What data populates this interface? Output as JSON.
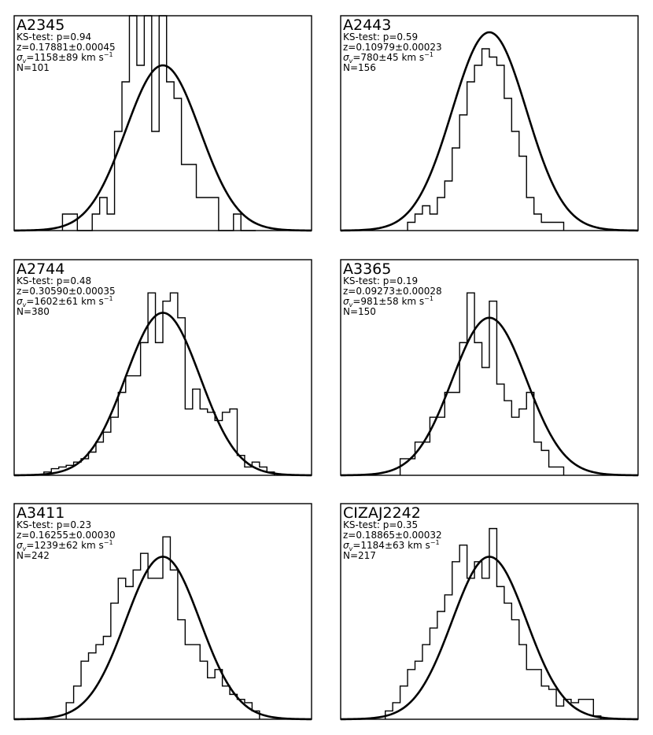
{
  "chart_data": [
    {
      "type": "histogram",
      "title": "A2345",
      "ks_test": "KS-test: p=0.94",
      "redshift": "z=0.17881±0.00045",
      "sigma_v": "=1158±89 km s",
      "n": "N=101",
      "xlim": [
        -4,
        4
      ],
      "ylim": [
        0,
        1.3
      ],
      "bins": [
        -2.7,
        -2.3,
        -1.9,
        -1.7,
        -1.5,
        -1.3,
        -1.1,
        -0.9,
        -0.7,
        -0.5,
        -0.3,
        -0.1,
        0.1,
        0.3,
        0.5,
        0.7,
        0.9,
        1.1,
        1.5,
        1.9,
        2.1,
        2.5
      ],
      "counts": [
        0.1,
        0,
        0.1,
        0.2,
        0.1,
        0.6,
        0.9,
        1.3,
        1.0,
        1.3,
        0.6,
        1.3,
        0.9,
        0.8,
        0.4,
        0.4,
        0.2,
        0.2,
        0,
        0.1,
        0
      ],
      "gauss_peak": 1.0
    },
    {
      "type": "histogram",
      "title": "A2443",
      "ks_test": "KS-test: p=0.59",
      "redshift": "z=0.10979±0.00023",
      "sigma_v": "=780±45 km s",
      "n": "N=156",
      "xlim": [
        -4,
        4
      ],
      "ylim": [
        0,
        1.3
      ],
      "bins": [
        -2.2,
        -2.0,
        -1.8,
        -1.6,
        -1.4,
        -1.2,
        -1.0,
        -0.8,
        -0.6,
        -0.4,
        -0.2,
        0.0,
        0.2,
        0.4,
        0.6,
        0.8,
        1.0,
        1.2,
        1.4,
        1.6,
        1.8,
        2.0
      ],
      "counts": [
        0.05,
        0.1,
        0.15,
        0.1,
        0.2,
        0.3,
        0.5,
        0.7,
        0.9,
        1.0,
        1.1,
        1.05,
        1.0,
        0.8,
        0.6,
        0.45,
        0.2,
        0.1,
        0.05,
        0.05,
        0.05
      ],
      "gauss_peak": 1.2
    },
    {
      "type": "histogram",
      "title": "A2744",
      "ks_test": "KS-test: p=0.48",
      "redshift": "z=0.30590±0.00035",
      "sigma_v": "=1602±61 km s",
      "n": "N=380",
      "xlim": [
        -4,
        4
      ],
      "ylim": [
        0,
        1.3
      ],
      "bins": [
        -3.2,
        -3.0,
        -2.8,
        -2.6,
        -2.4,
        -2.2,
        -2.0,
        -1.8,
        -1.6,
        -1.4,
        -1.2,
        -1.0,
        -0.8,
        -0.6,
        -0.4,
        -0.2,
        0.0,
        0.2,
        0.4,
        0.6,
        0.8,
        1.0,
        1.2,
        1.4,
        1.6,
        1.8,
        2.0,
        2.2,
        2.4,
        2.6,
        2.8,
        3.0
      ],
      "counts": [
        0.02,
        0.04,
        0.05,
        0.06,
        0.08,
        0.1,
        0.14,
        0.2,
        0.26,
        0.35,
        0.5,
        0.6,
        0.6,
        0.8,
        1.1,
        0.8,
        1.05,
        1.1,
        0.95,
        0.4,
        0.52,
        0.4,
        0.38,
        0.33,
        0.38,
        0.4,
        0.12,
        0.05,
        0.08,
        0.05,
        0.02
      ],
      "gauss_peak": 0.98
    },
    {
      "type": "histogram",
      "title": "A3365",
      "ks_test": "KS-test: p=0.19",
      "redshift": "z=0.09273±0.00028",
      "sigma_v": "=981±58 km s",
      "n": "N=150",
      "xlim": [
        -4,
        4
      ],
      "ylim": [
        0,
        1.3
      ],
      "bins": [
        -2.4,
        -2.0,
        -1.6,
        -1.2,
        -0.8,
        -0.6,
        -0.4,
        -0.2,
        0.0,
        0.2,
        0.4,
        0.6,
        0.8,
        1.0,
        1.2,
        1.4,
        1.6,
        2.0
      ],
      "counts": [
        0.1,
        0.2,
        0.35,
        0.5,
        0.8,
        1.1,
        0.8,
        0.65,
        1.05,
        0.55,
        0.45,
        0.35,
        0.4,
        0.5,
        0.2,
        0.15,
        0.05
      ],
      "gauss_peak": 0.95
    },
    {
      "type": "histogram",
      "title": "A3411",
      "ks_test": "KS-test: p=0.23",
      "redshift": "z=0.16255±0.00030",
      "sigma_v": "=1239±62 km s",
      "n": "N=242",
      "xlim": [
        -4,
        4
      ],
      "ylim": [
        0,
        1.3
      ],
      "bins": [
        -2.6,
        -2.4,
        -2.2,
        -2.0,
        -1.8,
        -1.6,
        -1.4,
        -1.2,
        -1.0,
        -0.8,
        -0.6,
        -0.4,
        -0.2,
        0.0,
        0.2,
        0.4,
        0.6,
        0.8,
        1.0,
        1.2,
        1.4,
        1.6,
        1.8,
        2.0,
        2.2,
        2.4,
        2.6
      ],
      "counts": [
        0.1,
        0.2,
        0.35,
        0.4,
        0.45,
        0.5,
        0.7,
        0.85,
        0.8,
        0.9,
        1.0,
        0.85,
        0.85,
        1.1,
        0.9,
        0.6,
        0.45,
        0.45,
        0.35,
        0.25,
        0.3,
        0.2,
        0.15,
        0.12,
        0.1,
        0.05
      ],
      "gauss_peak": 0.98
    },
    {
      "type": "histogram",
      "title": "CIZAJ2242",
      "ks_test": "KS-test: p=0.35",
      "redshift": "z=0.18865±0.00032",
      "sigma_v": "=1184±63 km s",
      "n": "N=217",
      "xlim": [
        -4,
        4
      ],
      "ylim": [
        0,
        1.3
      ],
      "bins": [
        -2.8,
        -2.6,
        -2.4,
        -2.2,
        -2.0,
        -1.8,
        -1.6,
        -1.4,
        -1.2,
        -1.0,
        -0.8,
        -0.6,
        -0.4,
        -0.2,
        0.0,
        0.2,
        0.4,
        0.6,
        0.8,
        1.0,
        1.2,
        1.4,
        1.6,
        1.8,
        2.0,
        2.2,
        2.4,
        2.6,
        2.8,
        3.0
      ],
      "counts": [
        0.05,
        0.1,
        0.2,
        0.3,
        0.35,
        0.45,
        0.55,
        0.65,
        0.75,
        0.95,
        1.05,
        0.85,
        0.95,
        0.85,
        1.15,
        0.8,
        0.7,
        0.6,
        0.45,
        0.3,
        0.3,
        0.2,
        0.18,
        0.08,
        0.12,
        0.1,
        0.12,
        0.12,
        0.02
      ],
      "gauss_peak": 0.98
    }
  ]
}
